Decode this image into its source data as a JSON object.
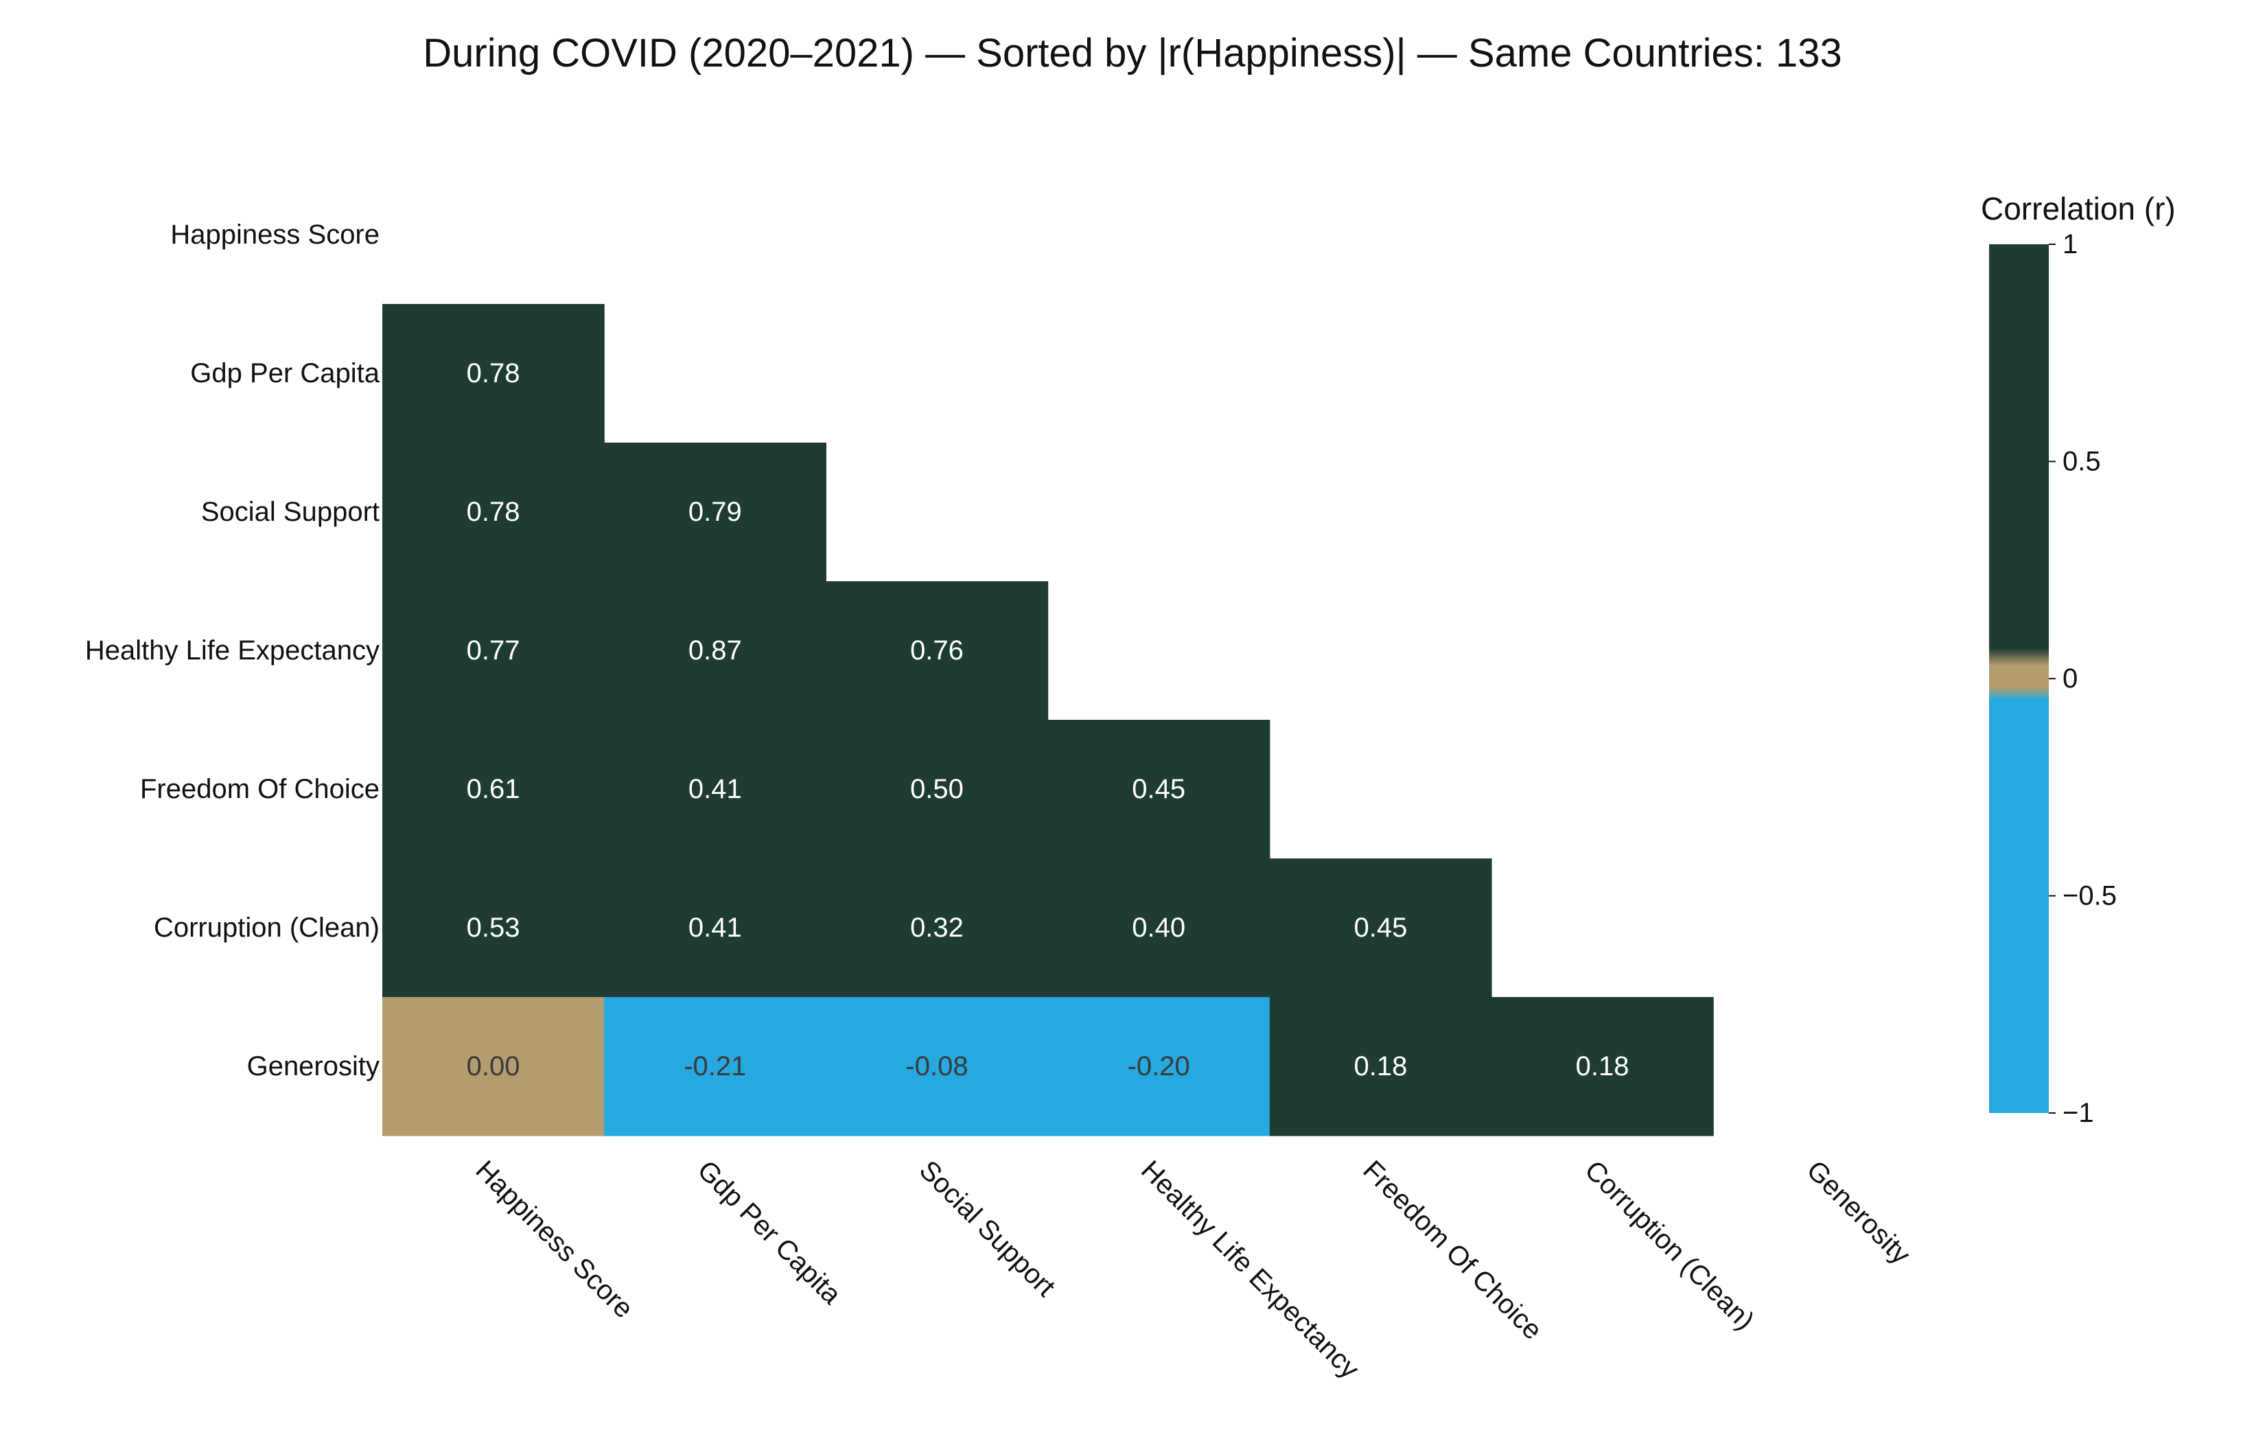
{
  "chart_data": {
    "type": "heatmap",
    "title": "During COVID (2020–2021) — Sorted by |r(Happiness)| — Same Countries: 133",
    "variables": [
      "Happiness Score",
      "Gdp Per Capita",
      "Social Support",
      "Healthy Life Expectancy",
      "Freedom Of Choice",
      "Corruption (Clean)",
      "Generosity"
    ],
    "matrix": [
      [
        null,
        null,
        null,
        null,
        null,
        null,
        null
      ],
      [
        0.78,
        null,
        null,
        null,
        null,
        null,
        null
      ],
      [
        0.78,
        0.79,
        null,
        null,
        null,
        null,
        null
      ],
      [
        0.77,
        0.87,
        0.76,
        null,
        null,
        null,
        null
      ],
      [
        0.61,
        0.41,
        0.5,
        0.45,
        null,
        null,
        null
      ],
      [
        0.53,
        0.41,
        0.32,
        0.4,
        0.45,
        null,
        null
      ],
      [
        0.0,
        -0.21,
        -0.08,
        -0.2,
        0.18,
        0.18,
        null
      ]
    ],
    "value_format": "2 decimals",
    "mask": "upper triangle and diagonal hidden",
    "colorbar": {
      "title": "Correlation (r)",
      "range": [
        -1,
        1
      ],
      "ticks": [
        1,
        0.5,
        0,
        -0.5,
        -1
      ],
      "tick_labels": [
        "1",
        "0.5",
        "0",
        "−0.5",
        "−1"
      ]
    },
    "colors": {
      "positive": "#1f3c34",
      "zero": "#b39c6e",
      "negative": "#26a8e0",
      "text_on_dark": "#ffffff",
      "text_on_light": "#3a3a3a"
    },
    "xtick_rotation": -45
  }
}
